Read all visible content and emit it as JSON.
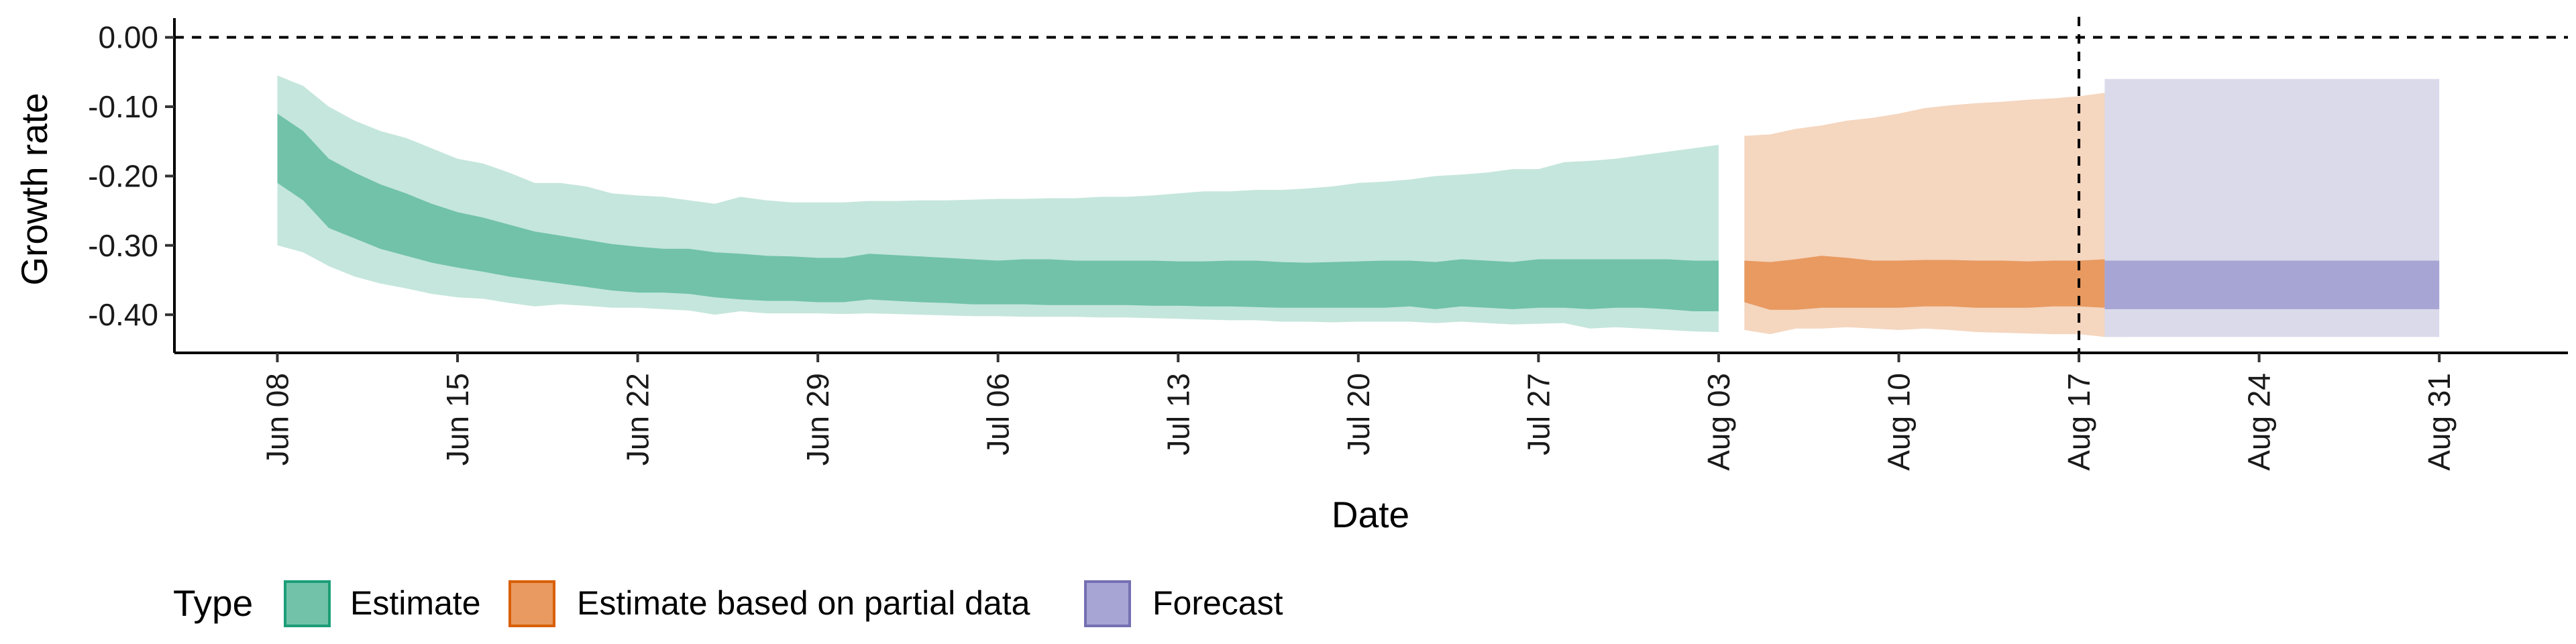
{
  "chart_data": {
    "type": "area",
    "xlabel": "Date",
    "ylabel": "Growth rate",
    "x_dates": [
      "2020-06-08",
      "2020-06-09",
      "2020-06-10",
      "2020-06-11",
      "2020-06-12",
      "2020-06-13",
      "2020-06-14",
      "2020-06-15",
      "2020-06-16",
      "2020-06-17",
      "2020-06-18",
      "2020-06-19",
      "2020-06-20",
      "2020-06-21",
      "2020-06-22",
      "2020-06-23",
      "2020-06-24",
      "2020-06-25",
      "2020-06-26",
      "2020-06-27",
      "2020-06-28",
      "2020-06-29",
      "2020-06-30",
      "2020-07-01",
      "2020-07-02",
      "2020-07-03",
      "2020-07-04",
      "2020-07-05",
      "2020-07-06",
      "2020-07-07",
      "2020-07-08",
      "2020-07-09",
      "2020-07-10",
      "2020-07-11",
      "2020-07-12",
      "2020-07-13",
      "2020-07-14",
      "2020-07-15",
      "2020-07-16",
      "2020-07-17",
      "2020-07-18",
      "2020-07-19",
      "2020-07-20",
      "2020-07-21",
      "2020-07-22",
      "2020-07-23",
      "2020-07-24",
      "2020-07-25",
      "2020-07-26",
      "2020-07-27",
      "2020-07-28",
      "2020-07-29",
      "2020-07-30",
      "2020-07-31",
      "2020-08-01",
      "2020-08-02",
      "2020-08-03"
    ],
    "x_ticks": [
      {
        "date": "2020-06-08",
        "label": "Jun 08"
      },
      {
        "date": "2020-06-15",
        "label": "Jun 15"
      },
      {
        "date": "2020-06-22",
        "label": "Jun 22"
      },
      {
        "date": "2020-06-29",
        "label": "Jun 29"
      },
      {
        "date": "2020-07-06",
        "label": "Jul 06"
      },
      {
        "date": "2020-07-13",
        "label": "Jul 13"
      },
      {
        "date": "2020-07-20",
        "label": "Jul 20"
      },
      {
        "date": "2020-07-27",
        "label": "Jul 27"
      },
      {
        "date": "2020-08-03",
        "label": "Aug 03"
      },
      {
        "date": "2020-08-10",
        "label": "Aug 10"
      },
      {
        "date": "2020-08-17",
        "label": "Aug 17"
      },
      {
        "date": "2020-08-24",
        "label": "Aug 24"
      },
      {
        "date": "2020-08-31",
        "label": "Aug 31"
      }
    ],
    "xlim": [
      "2020-06-04",
      "2020-09-05"
    ],
    "y_ticks": [
      {
        "value": 0.0,
        "label": "0.00"
      },
      {
        "value": -0.1,
        "label": "-0.10"
      },
      {
        "value": -0.2,
        "label": "-0.20"
      },
      {
        "value": -0.3,
        "label": "-0.30"
      },
      {
        "value": -0.4,
        "label": "-0.40"
      }
    ],
    "ylim": [
      -0.455,
      0.02
    ],
    "reference_lines": [
      {
        "axis": "y",
        "value": 0.0,
        "style": "dashed"
      },
      {
        "axis": "x",
        "value": "2020-08-17",
        "style": "dashed"
      }
    ],
    "grid": false,
    "legend": {
      "position": "bottom-left",
      "title": "Type",
      "entries": [
        {
          "label": "Estimate",
          "fill": "#71c2a9",
          "stroke": "#1b9e77"
        },
        {
          "label": "Estimate based on partial data",
          "fill": "#e89a61",
          "stroke": "#d95f02"
        },
        {
          "label": "Forecast",
          "fill": "#a6a5d3",
          "stroke": "#7570b3"
        }
      ]
    },
    "series": [
      {
        "type_key": "Estimate",
        "color_dark": "#71c2a9",
        "color_light": "#c5e6dc",
        "start_date": "2020-06-08",
        "outer_upper": [
          -0.055,
          -0.07,
          -0.1,
          -0.12,
          -0.135,
          -0.145,
          -0.16,
          -0.175,
          -0.182,
          -0.195,
          -0.21,
          -0.21,
          -0.215,
          -0.225,
          -0.228,
          -0.23,
          -0.235,
          -0.24,
          -0.23,
          -0.235,
          -0.238,
          -0.238,
          -0.238,
          -0.236,
          -0.236,
          -0.235,
          -0.235,
          -0.234,
          -0.233,
          -0.233,
          -0.232,
          -0.232,
          -0.23,
          -0.23,
          -0.228,
          -0.225,
          -0.222,
          -0.222,
          -0.22,
          -0.22,
          -0.218,
          -0.215,
          -0.21,
          -0.208,
          -0.205,
          -0.2,
          -0.198,
          -0.195,
          -0.19,
          -0.19,
          -0.18,
          -0.178,
          -0.175,
          -0.17,
          -0.165,
          -0.16,
          -0.155
        ],
        "inner_upper": [
          -0.11,
          -0.135,
          -0.175,
          -0.195,
          -0.212,
          -0.225,
          -0.24,
          -0.252,
          -0.26,
          -0.27,
          -0.28,
          -0.286,
          -0.292,
          -0.298,
          -0.302,
          -0.305,
          -0.305,
          -0.31,
          -0.312,
          -0.315,
          -0.316,
          -0.318,
          -0.318,
          -0.312,
          -0.314,
          -0.316,
          -0.318,
          -0.32,
          -0.322,
          -0.32,
          -0.32,
          -0.322,
          -0.322,
          -0.322,
          -0.322,
          -0.323,
          -0.323,
          -0.322,
          -0.322,
          -0.324,
          -0.325,
          -0.324,
          -0.323,
          -0.322,
          -0.322,
          -0.324,
          -0.32,
          -0.322,
          -0.324,
          -0.32,
          -0.32,
          -0.32,
          -0.32,
          -0.32,
          -0.32,
          -0.322,
          -0.322
        ],
        "inner_lower": [
          -0.21,
          -0.235,
          -0.275,
          -0.29,
          -0.305,
          -0.315,
          -0.325,
          -0.332,
          -0.338,
          -0.345,
          -0.35,
          -0.355,
          -0.36,
          -0.365,
          -0.368,
          -0.368,
          -0.37,
          -0.375,
          -0.378,
          -0.38,
          -0.38,
          -0.382,
          -0.382,
          -0.378,
          -0.38,
          -0.382,
          -0.383,
          -0.385,
          -0.385,
          -0.385,
          -0.386,
          -0.386,
          -0.386,
          -0.386,
          -0.387,
          -0.387,
          -0.388,
          -0.388,
          -0.389,
          -0.39,
          -0.39,
          -0.39,
          -0.39,
          -0.39,
          -0.388,
          -0.392,
          -0.388,
          -0.39,
          -0.392,
          -0.39,
          -0.39,
          -0.392,
          -0.39,
          -0.39,
          -0.392,
          -0.395,
          -0.395
        ],
        "outer_lower": [
          -0.3,
          -0.31,
          -0.33,
          -0.345,
          -0.355,
          -0.362,
          -0.37,
          -0.375,
          -0.377,
          -0.383,
          -0.388,
          -0.385,
          -0.387,
          -0.39,
          -0.39,
          -0.392,
          -0.394,
          -0.4,
          -0.395,
          -0.398,
          -0.398,
          -0.398,
          -0.399,
          -0.398,
          -0.399,
          -0.4,
          -0.401,
          -0.402,
          -0.402,
          -0.403,
          -0.403,
          -0.403,
          -0.404,
          -0.404,
          -0.405,
          -0.406,
          -0.407,
          -0.408,
          -0.408,
          -0.41,
          -0.41,
          -0.411,
          -0.41,
          -0.41,
          -0.41,
          -0.412,
          -0.41,
          -0.412,
          -0.414,
          -0.413,
          -0.412,
          -0.42,
          -0.418,
          -0.42,
          -0.422,
          -0.424,
          -0.425
        ]
      },
      {
        "type_key": "Estimate based on partial data",
        "color_dark": "#e89a61",
        "color_light": "#f5d6bf",
        "start_date": "2020-08-04",
        "outer_upper": [
          -0.142,
          -0.14,
          -0.132,
          -0.127,
          -0.12,
          -0.116,
          -0.11,
          -0.102,
          -0.098,
          -0.095,
          -0.093,
          -0.09,
          -0.088,
          -0.085,
          -0.08,
          -0.065
        ],
        "inner_upper": [
          -0.322,
          -0.324,
          -0.32,
          -0.315,
          -0.318,
          -0.322,
          -0.322,
          -0.321,
          -0.321,
          -0.322,
          -0.322,
          -0.323,
          -0.322,
          -0.322,
          -0.32,
          -0.32
        ],
        "inner_lower": [
          -0.382,
          -0.393,
          -0.393,
          -0.39,
          -0.39,
          -0.39,
          -0.39,
          -0.388,
          -0.388,
          -0.39,
          -0.39,
          -0.39,
          -0.388,
          -0.388,
          -0.39,
          -0.392
        ],
        "outer_lower": [
          -0.422,
          -0.428,
          -0.42,
          -0.42,
          -0.418,
          -0.42,
          -0.422,
          -0.42,
          -0.422,
          -0.425,
          -0.426,
          -0.427,
          -0.428,
          -0.428,
          -0.432,
          -0.432
        ]
      },
      {
        "type_key": "Forecast",
        "color_dark": "#a6a5d3",
        "color_light": "#dadaeb",
        "start_date": "2020-08-18",
        "end_date": "2020-08-31",
        "outer_upper": -0.06,
        "inner_upper": -0.322,
        "inner_lower": -0.392,
        "outer_lower": -0.432
      }
    ]
  }
}
